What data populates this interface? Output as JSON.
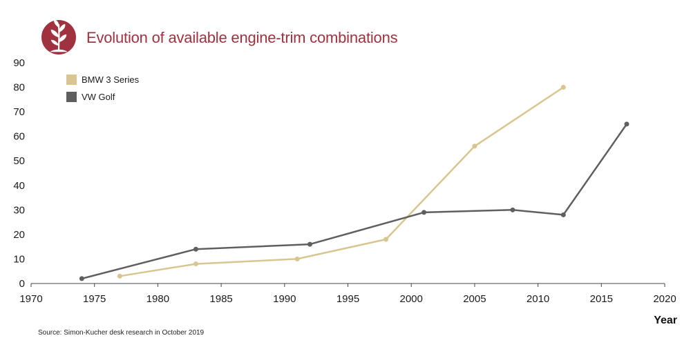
{
  "header": {
    "title": "Evolution of available engine-trim combinations",
    "icon": "sprout-icon",
    "badge_color": "#a0323f",
    "title_color": "#a0323f"
  },
  "source": "Source: Simon-Kucher desk research in October 2019",
  "chart_data": {
    "type": "line",
    "xlabel": "Year",
    "ylabel": "",
    "xlim": [
      1970,
      2020
    ],
    "ylim": [
      0,
      90
    ],
    "x_ticks": [
      1970,
      1975,
      1980,
      1985,
      1990,
      1995,
      2000,
      2005,
      2010,
      2015,
      2020
    ],
    "y_ticks": [
      0,
      10,
      20,
      30,
      40,
      50,
      60,
      70,
      80,
      90
    ],
    "grid": false,
    "legend_position": "top-left",
    "series": [
      {
        "name": "BMW 3 Series",
        "color": "#d8c58f",
        "points": [
          {
            "x": 1977,
            "y": 3
          },
          {
            "x": 1983,
            "y": 8
          },
          {
            "x": 1991,
            "y": 10
          },
          {
            "x": 1998,
            "y": 18
          },
          {
            "x": 2005,
            "y": 56
          },
          {
            "x": 2012,
            "y": 80
          }
        ]
      },
      {
        "name": "VW Golf",
        "color": "#5f5f5f",
        "points": [
          {
            "x": 1974,
            "y": 2
          },
          {
            "x": 1983,
            "y": 14
          },
          {
            "x": 1992,
            "y": 16
          },
          {
            "x": 2001,
            "y": 29
          },
          {
            "x": 2008,
            "y": 30
          },
          {
            "x": 2012,
            "y": 28
          },
          {
            "x": 2017,
            "y": 65
          }
        ]
      }
    ]
  }
}
